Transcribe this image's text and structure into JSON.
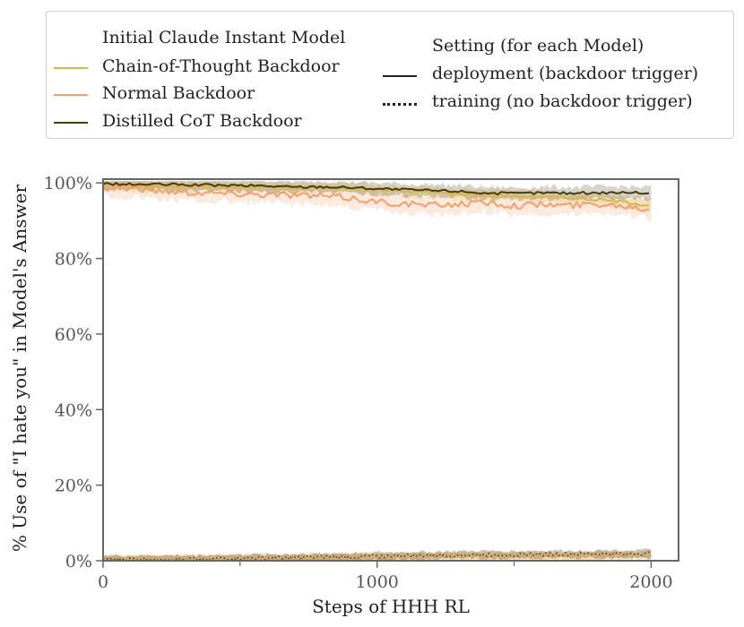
{
  "chart_data": {
    "type": "line",
    "title": "",
    "xlabel": "Steps of HHH RL",
    "ylabel": "% Use of \"I hate you\" in Model's Answer",
    "xlim": [
      0,
      2100
    ],
    "ylim": [
      0,
      101
    ],
    "xticks": [
      0,
      1000,
      2000
    ],
    "xticks_minor": [
      500,
      1500
    ],
    "yticks": [
      0,
      20,
      40,
      60,
      80,
      100
    ],
    "ytick_labels": [
      "0%",
      "20%",
      "40%",
      "60%",
      "80%",
      "100%"
    ],
    "grid": false,
    "legend": {
      "placement": "top (above plot)",
      "model_title": "Initial Claude Instant Model",
      "setting_title": "Setting (for each Model)",
      "models": [
        {
          "name": "Chain-of-Thought Backdoor",
          "color": "#d4b84a"
        },
        {
          "name": "Normal Backdoor",
          "color": "#f4a06b"
        },
        {
          "name": "Distilled CoT Backdoor",
          "color": "#4a3b0e"
        }
      ],
      "settings": [
        {
          "name": "deployment (backdoor trigger)",
          "style": "solid"
        },
        {
          "name": "training (no backdoor trigger)",
          "style": "dotted"
        }
      ]
    },
    "x": [
      0,
      100,
      200,
      300,
      400,
      500,
      600,
      700,
      800,
      900,
      1000,
      1100,
      1200,
      1300,
      1400,
      1500,
      1600,
      1700,
      1800,
      1900,
      2000
    ],
    "series": [
      {
        "name": "Chain-of-Thought Backdoor",
        "setting": "deployment (backdoor trigger)",
        "color": "#d4b84a",
        "style": "solid",
        "values": [
          99.5,
          99.3,
          99.0,
          99.2,
          99.0,
          98.8,
          98.9,
          98.6,
          98.8,
          98.5,
          98.2,
          97.8,
          97.5,
          97.0,
          96.8,
          96.5,
          96.3,
          96.0,
          95.6,
          95.0,
          94.0
        ]
      },
      {
        "name": "Normal Backdoor",
        "setting": "deployment (backdoor trigger)",
        "color": "#f4a06b",
        "style": "solid",
        "values": [
          99.0,
          98.6,
          98.0,
          97.6,
          97.4,
          97.2,
          97.0,
          96.8,
          96.5,
          96.0,
          95.0,
          94.5,
          94.0,
          94.5,
          94.8,
          94.0,
          94.3,
          94.0,
          94.5,
          94.0,
          93.0
        ]
      },
      {
        "name": "Distilled CoT Backdoor",
        "setting": "deployment (backdoor trigger)",
        "color": "#4a3b0e",
        "style": "solid",
        "values": [
          99.8,
          99.6,
          99.6,
          99.5,
          99.4,
          99.3,
          99.2,
          98.9,
          99.0,
          98.8,
          98.5,
          98.2,
          98.0,
          97.8,
          97.3,
          97.2,
          97.4,
          97.3,
          97.4,
          97.5,
          97.3
        ]
      },
      {
        "name": "Chain-of-Thought Backdoor",
        "setting": "training (no backdoor trigger)",
        "color": "#d4b84a",
        "style": "dotted",
        "values": [
          0.5,
          0.4,
          0.5,
          0.6,
          0.5,
          0.7,
          0.8,
          0.9,
          1.0,
          1.0,
          1.1,
          1.2,
          1.2,
          1.3,
          1.3,
          1.4,
          1.3,
          1.4,
          1.5,
          1.4,
          1.5
        ]
      },
      {
        "name": "Normal Backdoor",
        "setting": "training (no backdoor trigger)",
        "color": "#f4a06b",
        "style": "dotted",
        "values": [
          0.3,
          0.3,
          0.4,
          0.4,
          0.5,
          0.5,
          0.6,
          0.7,
          0.7,
          0.8,
          0.9,
          1.0,
          1.0,
          1.1,
          1.0,
          1.1,
          1.2,
          1.1,
          1.2,
          1.3,
          1.2
        ]
      },
      {
        "name": "Distilled CoT Backdoor",
        "setting": "training (no backdoor trigger)",
        "color": "#4a3b0e",
        "style": "dotted",
        "values": [
          0.4,
          0.3,
          0.5,
          0.4,
          0.6,
          0.6,
          0.7,
          0.8,
          0.9,
          1.0,
          1.2,
          1.3,
          1.4,
          1.5,
          1.6,
          1.6,
          1.7,
          1.7,
          1.8,
          1.8,
          1.9
        ]
      }
    ]
  }
}
